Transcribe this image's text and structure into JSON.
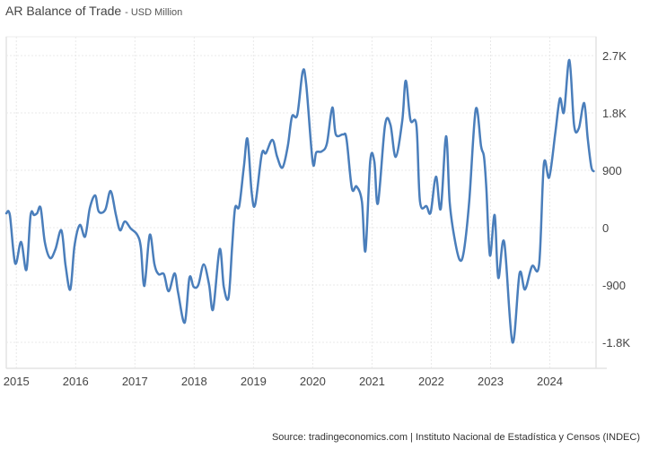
{
  "chart_data": {
    "type": "line",
    "title": "AR Balance of Trade",
    "subtitle": "USD Million",
    "xlabel": "",
    "ylabel": "",
    "source": "Source: tradingeconomics.com | Instituto Nacional de Estadística y Censos (INDEC)",
    "xlim": [
      2014.83,
      2024.78
    ],
    "ylim": [
      -2207,
      2995
    ],
    "grid": true,
    "y_axis_side": "right",
    "line_color": "#4a7ebb",
    "x_ticks": [
      {
        "value": 2015,
        "label": "2015"
      },
      {
        "value": 2016,
        "label": "2016"
      },
      {
        "value": 2017,
        "label": "2017"
      },
      {
        "value": 2018,
        "label": "2018"
      },
      {
        "value": 2019,
        "label": "2019"
      },
      {
        "value": 2020,
        "label": "2020"
      },
      {
        "value": 2021,
        "label": "2021"
      },
      {
        "value": 2022,
        "label": "2022"
      },
      {
        "value": 2023,
        "label": "2023"
      },
      {
        "value": 2024,
        "label": "2024"
      }
    ],
    "y_ticks": [
      {
        "value": 2700,
        "label": "2.7K"
      },
      {
        "value": 1800,
        "label": "1.8K"
      },
      {
        "value": 900,
        "label": "900"
      },
      {
        "value": 0,
        "label": "0"
      },
      {
        "value": -900,
        "label": "-900"
      },
      {
        "value": -1800,
        "label": "-1.8K"
      }
    ],
    "series": [
      {
        "name": "AR Balance of Trade",
        "x": [
          2014.83,
          2014.89,
          2014.98,
          2015.08,
          2015.17,
          2015.24,
          2015.3,
          2015.35,
          2015.41,
          2015.48,
          2015.57,
          2015.66,
          2015.76,
          2015.83,
          2015.91,
          2015.98,
          2016.07,
          2016.16,
          2016.24,
          2016.33,
          2016.39,
          2016.5,
          2016.59,
          2016.68,
          2016.75,
          2016.83,
          2016.93,
          2017.04,
          2017.1,
          2017.16,
          2017.25,
          2017.33,
          2017.4,
          2017.49,
          2017.57,
          2017.67,
          2017.73,
          2017.84,
          2017.92,
          2017.99,
          2018.07,
          2018.16,
          2018.25,
          2018.32,
          2018.43,
          2018.5,
          2018.58,
          2018.64,
          2018.69,
          2018.76,
          2018.84,
          2018.9,
          2018.97,
          2019.03,
          2019.14,
          2019.21,
          2019.32,
          2019.4,
          2019.49,
          2019.58,
          2019.65,
          2019.74,
          2019.83,
          2019.89,
          2020.0,
          2020.06,
          2020.15,
          2020.24,
          2020.33,
          2020.39,
          2020.51,
          2020.57,
          2020.66,
          2020.74,
          2020.83,
          2020.89,
          2020.97,
          2021.04,
          2021.1,
          2021.22,
          2021.31,
          2021.4,
          2021.51,
          2021.57,
          2021.65,
          2021.75,
          2021.81,
          2021.92,
          2021.99,
          2022.08,
          2022.16,
          2022.25,
          2022.31,
          2022.39,
          2022.48,
          2022.55,
          2022.64,
          2022.75,
          2022.84,
          2022.89,
          2022.93,
          2022.99,
          2023.07,
          2023.13,
          2023.23,
          2023.37,
          2023.49,
          2023.58,
          2023.7,
          2023.82,
          2023.9,
          2023.99,
          2024.09,
          2024.17,
          2024.24,
          2024.33,
          2024.41,
          2024.49,
          2024.58,
          2024.64,
          2024.7,
          2024.74
        ],
        "values": [
          225,
          197,
          -560,
          -225,
          -660,
          197,
          197,
          225,
          309,
          -225,
          -478,
          -337,
          -42,
          -590,
          -970,
          -295,
          42,
          -140,
          309,
          506,
          253,
          281,
          576,
          197,
          -42,
          98,
          -14,
          -112,
          -309,
          -914,
          -112,
          -576,
          -731,
          -731,
          -998,
          -717,
          -1026,
          -1490,
          -787,
          -928,
          -900,
          -576,
          -886,
          -1280,
          -337,
          -928,
          -1097,
          -295,
          309,
          337,
          970,
          1392,
          548,
          365,
          1153,
          1167,
          1378,
          1110,
          942,
          1280,
          1743,
          1771,
          2446,
          2250,
          1026,
          1181,
          1195,
          1322,
          1884,
          1462,
          1462,
          1392,
          619,
          647,
          408,
          -365,
          1040,
          1040,
          380,
          1603,
          1617,
          1110,
          1673,
          2306,
          1687,
          1603,
          408,
          337,
          239,
          801,
          295,
          1434,
          408,
          -155,
          -506,
          -365,
          408,
          1856,
          1280,
          1110,
          619,
          -436,
          197,
          -787,
          -225,
          -1800,
          -717,
          -970,
          -604,
          -576,
          998,
          787,
          1462,
          2025,
          1814,
          2629,
          1603,
          1561,
          1954,
          1392,
          956,
          886
        ]
      }
    ]
  }
}
